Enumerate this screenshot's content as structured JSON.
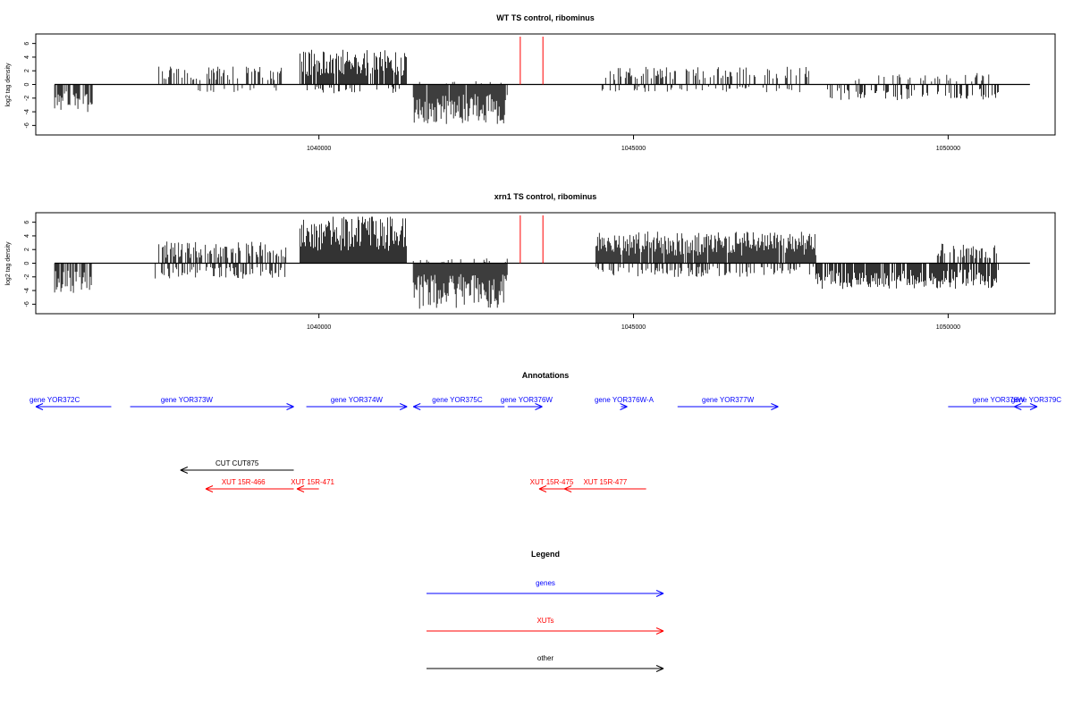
{
  "colors": {
    "genes": "#0000ff",
    "xuts": "#ff0000",
    "other": "#000000",
    "axis": "#000000",
    "marker": "#ff0000"
  },
  "chart_data": [
    {
      "type": "bar",
      "title": "WT TS control, ribominus",
      "ylabel": "log2 tag density",
      "ylim": [
        -7,
        7
      ],
      "xlim": [
        1035500,
        1051700
      ],
      "yticks": [
        "6",
        "4",
        "2",
        "0",
        "-2",
        "-4",
        "-6"
      ],
      "xticks": [
        "1040000",
        "1045000",
        "1050000"
      ],
      "markers_x": [
        1043200,
        1043560
      ],
      "marker_height": 7,
      "segments": [
        {
          "x0": 1035800,
          "x1": 1036400,
          "sign": -1,
          "level": 2.8,
          "density": 0.6
        },
        {
          "x0": 1036400,
          "x1": 1037400,
          "sign": 0,
          "level": 0,
          "density": 0
        },
        {
          "x0": 1037400,
          "x1": 1039500,
          "sign": 1,
          "level": 1.8,
          "density": 0.35
        },
        {
          "x0": 1038000,
          "x1": 1039500,
          "sign": -1,
          "level": 0.8,
          "density": 0.15
        },
        {
          "x0": 1039700,
          "x1": 1041400,
          "sign": 1,
          "level": 3.5,
          "density": 0.9
        },
        {
          "x0": 1039700,
          "x1": 1041400,
          "sign": -1,
          "level": 0.9,
          "density": 0.2
        },
        {
          "x0": 1041500,
          "x1": 1043000,
          "sign": -1,
          "level": 4.0,
          "density": 0.95
        },
        {
          "x0": 1041500,
          "x1": 1043000,
          "sign": 1,
          "level": 0.4,
          "density": 0.1
        },
        {
          "x0": 1044500,
          "x1": 1047800,
          "sign": 1,
          "level": 1.8,
          "density": 0.35
        },
        {
          "x0": 1044500,
          "x1": 1047800,
          "sign": -1,
          "level": 0.8,
          "density": 0.15
        },
        {
          "x0": 1048000,
          "x1": 1050800,
          "sign": -1,
          "level": 1.6,
          "density": 0.35
        },
        {
          "x0": 1048500,
          "x1": 1050800,
          "sign": 1,
          "level": 1.2,
          "density": 0.2
        }
      ]
    },
    {
      "type": "bar",
      "title": "xrn1 TS control, ribominus",
      "ylabel": "log2 tag density",
      "ylim": [
        -7,
        7
      ],
      "xlim": [
        1035500,
        1051700
      ],
      "yticks": [
        "6",
        "4",
        "2",
        "0",
        "-2",
        "-4",
        "-6"
      ],
      "xticks": [
        "1040000",
        "1045000",
        "1050000"
      ],
      "markers_x": [
        1043200,
        1043560
      ],
      "marker_height": 7,
      "segments": [
        {
          "x0": 1035800,
          "x1": 1036400,
          "sign": -1,
          "level": 3.0,
          "density": 0.7
        },
        {
          "x0": 1037400,
          "x1": 1039500,
          "sign": 1,
          "level": 2.2,
          "density": 0.55
        },
        {
          "x0": 1037400,
          "x1": 1039500,
          "sign": -1,
          "level": 1.6,
          "density": 0.4
        },
        {
          "x0": 1039700,
          "x1": 1041400,
          "sign": 1,
          "level": 5.0,
          "density": 1.0
        },
        {
          "x0": 1041500,
          "x1": 1043000,
          "sign": -1,
          "level": 4.6,
          "density": 1.0
        },
        {
          "x0": 1041500,
          "x1": 1043000,
          "sign": 1,
          "level": 0.5,
          "density": 0.15
        },
        {
          "x0": 1044400,
          "x1": 1047900,
          "sign": 1,
          "level": 3.2,
          "density": 0.95
        },
        {
          "x0": 1044400,
          "x1": 1047900,
          "sign": -1,
          "level": 1.4,
          "density": 0.4
        },
        {
          "x0": 1047900,
          "x1": 1050800,
          "sign": -1,
          "level": 2.6,
          "density": 0.85
        },
        {
          "x0": 1049800,
          "x1": 1050800,
          "sign": 1,
          "level": 2.0,
          "density": 0.5
        }
      ]
    }
  ],
  "annotations": {
    "title": "Annotations",
    "genes": [
      {
        "label": "gene YOR372C",
        "x_start": 1036700,
        "x_end": 1035500,
        "label_x": 1035800
      },
      {
        "label": "gene YOR373W",
        "x_start": 1037000,
        "x_end": 1039600,
        "label_x": 1037900
      },
      {
        "label": "gene YOR374W",
        "x_start": 1039800,
        "x_end": 1041400,
        "label_x": 1040600
      },
      {
        "label": "gene YOR375C",
        "x_start": 1042950,
        "x_end": 1041500,
        "label_x": 1042200
      },
      {
        "label": "gene YOR376W",
        "x_start": 1043000,
        "x_end": 1043550,
        "label_x": 1043300
      },
      {
        "label": "gene YOR376W-A",
        "x_start": 1044800,
        "x_end": 1044900,
        "label_x": 1044850
      },
      {
        "label": "gene YOR377W",
        "x_start": 1045700,
        "x_end": 1047300,
        "label_x": 1046500
      },
      {
        "label": "gene YOR378W",
        "x_start": 1050000,
        "x_end": 1051500,
        "label_x": 1050800
      },
      {
        "label": "gene YOR379C",
        "x_start": 1051500,
        "x_end": 1051050,
        "label_x": 1051400
      }
    ],
    "other": [
      {
        "label": "CUT CUT875",
        "x_start": 1039600,
        "x_end": 1037800,
        "label_x": 1038700
      }
    ],
    "xuts": [
      {
        "label": "XUT 15R-466",
        "x_start": 1039600,
        "x_end": 1038200,
        "label_x": 1038800
      },
      {
        "label": "XUT 15R-471",
        "x_start": 1040000,
        "x_end": 1039650,
        "label_x": 1039900
      },
      {
        "label": "XUT 15R-475",
        "x_start": 1043900,
        "x_end": 1043500,
        "label_x": 1043700
      },
      {
        "label": "XUT 15R-477",
        "x_start": 1045200,
        "x_end": 1043900,
        "label_x": 1044550
      }
    ]
  },
  "legend": {
    "title": "Legend",
    "items": [
      {
        "label": "genes",
        "color_key": "genes"
      },
      {
        "label": "XUTs",
        "color_key": "xuts"
      },
      {
        "label": "other",
        "color_key": "other"
      }
    ]
  }
}
